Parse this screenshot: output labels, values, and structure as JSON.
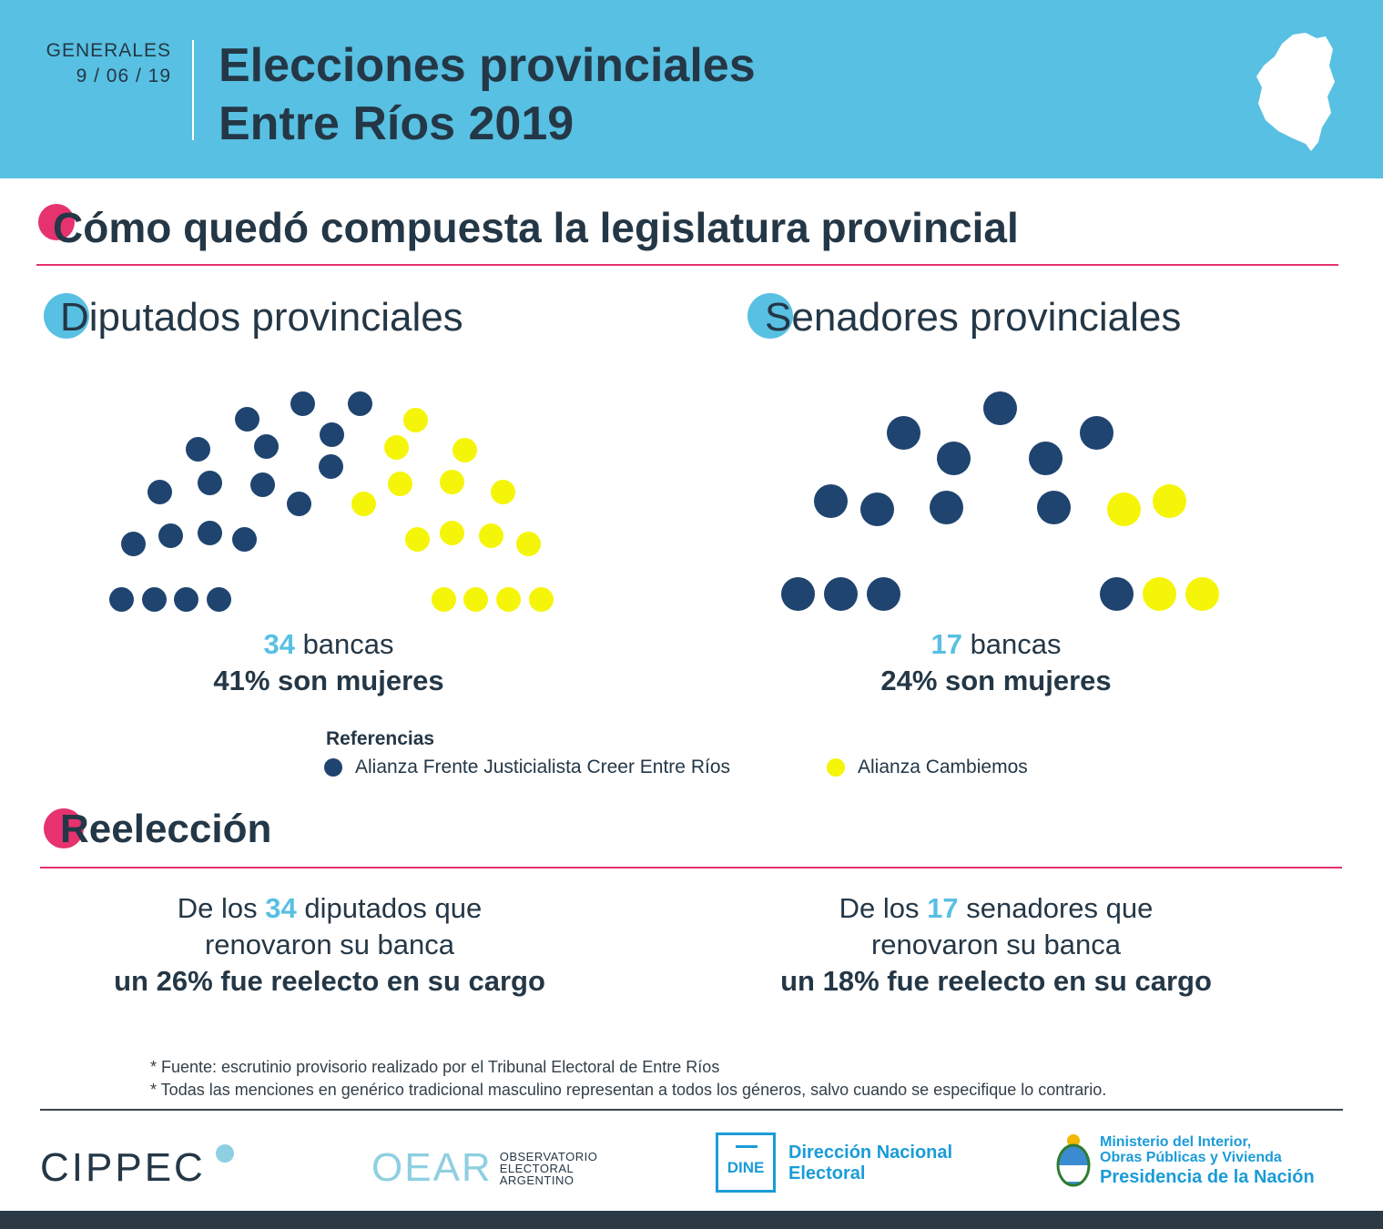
{
  "header": {
    "kicker": "GENERALES",
    "date": "9 / 06 / 19",
    "title_line1": "Elecciones provinciales",
    "title_line2": "Entre Ríos 2019"
  },
  "section_main": {
    "title": "Cómo quedó compuesta la legislatura provincial"
  },
  "diputados": {
    "title": "Diputados provinciales",
    "seats_total": "34",
    "seats_label": "bancas",
    "women": "41% son mujeres",
    "composition": {
      "frente": 19,
      "cambiemos": 15
    }
  },
  "senadores": {
    "title": "Senadores provinciales",
    "seats_total": "17",
    "seats_label": "bancas",
    "women": "24% son mujeres",
    "composition": {
      "frente": 13,
      "cambiemos": 4
    }
  },
  "legend": {
    "title": "Referencias",
    "items": [
      {
        "label": "Alianza Frente Justicialista Creer Entre Ríos",
        "color": "#1f4470"
      },
      {
        "label": "Alianza Cambiemos",
        "color": "#f5f50a"
      }
    ]
  },
  "reeleccion": {
    "title": "Reelección",
    "diputados": {
      "pre": "De los",
      "num": "34",
      "post": "diputados que",
      "line2": "renovaron su banca",
      "line3": "un 26% fue reelecto en su cargo"
    },
    "senadores": {
      "pre": "De los",
      "num": "17",
      "post": "senadores que",
      "line2": "renovaron su banca",
      "line3": "un 18% fue reelecto en su cargo"
    }
  },
  "notes": [
    "* Fuente: escrutinio provisorio realizado por el Tribunal Electoral de Entre Ríos",
    "* Todas las menciones en genérico tradicional masculino representan a todos los géneros, salvo cuando se especifique lo contrario."
  ],
  "logos": {
    "cippec": "CIPPEC",
    "oear_main": "OEAR",
    "oear_sub": [
      "OBSERVATORIO",
      "ELECTORAL",
      "ARGENTINO"
    ],
    "dine_badge": "DINE",
    "dine_line1": "Dirección Nacional",
    "dine_line2": "Electoral",
    "ministerio_line1": "Ministerio del Interior,",
    "ministerio_line2": "Obras Públicas y Vivienda",
    "ministerio_line3": "Presidencia de la Nación"
  },
  "colors": {
    "frente": "#1f4470",
    "cambiemos": "#f5f50a",
    "accent_blue": "#58c0e2",
    "accent_pink": "#e6326e",
    "text_dark": "#243746"
  }
}
